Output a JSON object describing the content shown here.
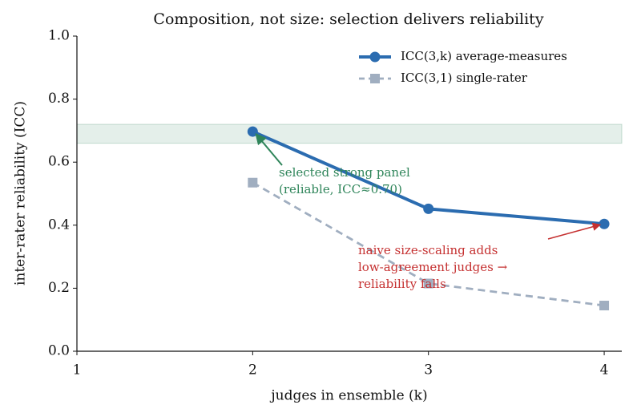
{
  "chart_data": {
    "type": "line",
    "title": "Composition, not size: selection delivers reliability",
    "xlabel": "judges in ensemble (k)",
    "ylabel": "inter-rater reliability (ICC)",
    "x": [
      2,
      3,
      4
    ],
    "series": [
      {
        "name": "ICC(3,k) average-measures",
        "color": "#2b6cb0",
        "marker": "circle",
        "dash": false,
        "values": [
          0.697,
          0.452,
          0.404
        ]
      },
      {
        "name": "ICC(3,1) single-rater",
        "color": "#a0aec0",
        "marker": "square",
        "dash": true,
        "values": [
          0.535,
          0.215,
          0.145
        ]
      }
    ],
    "band": {
      "range": [
        0.66,
        0.72
      ],
      "color": "#2f855a"
    },
    "xlim": [
      1,
      4.1
    ],
    "xticks": [
      1,
      2,
      3,
      4
    ],
    "ylim": [
      0,
      1
    ],
    "yticks": [
      {
        "value": 0,
        "label": "0.0"
      },
      0.2,
      0.4,
      0.6,
      0.8,
      {
        "value": 1,
        "label": "1.0"
      }
    ],
    "legend": "upper right",
    "annotations": [
      {
        "lines": [
          "selected strong panel",
          "(reliable, ICC≈0.70)"
        ],
        "color": "#2f855a"
      },
      {
        "lines": [
          "naive size-scaling adds",
          "low-agreement judges →",
          "reliability falls"
        ],
        "color": "#c53030"
      }
    ]
  }
}
